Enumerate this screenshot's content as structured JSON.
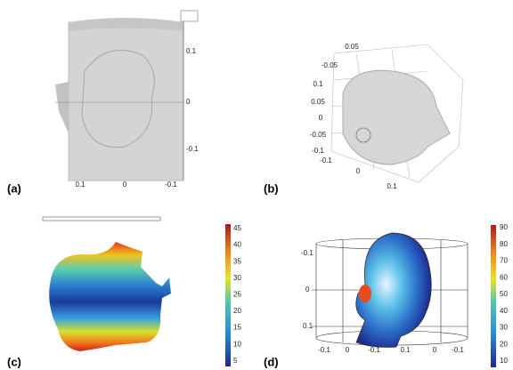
{
  "panels": [
    {
      "label": "(a)",
      "axis_right": [
        "0.1",
        "0",
        "-0.1"
      ],
      "axis_bottom": [
        "0.1",
        "0",
        "-0.1"
      ]
    },
    {
      "label": "(b)",
      "axis_labels": [
        "0.05",
        "-0.05",
        "0.1",
        "0.05",
        "0",
        "-0.05",
        "-0.1",
        "-0.1",
        "0",
        "0.1"
      ]
    },
    {
      "label": "(c)",
      "colorbar": [
        "45",
        "40",
        "35",
        "30",
        "25",
        "20",
        "15",
        "10",
        "5"
      ]
    },
    {
      "label": "(d)",
      "axis_left": [
        "-0.1",
        "0",
        "0.1"
      ],
      "axis_bottom": [
        "-0.1",
        "0",
        "-0.1",
        "0.1",
        "0",
        "-0.1"
      ],
      "colorbar": [
        "90",
        "80",
        "70",
        "60",
        "50",
        "40",
        "30",
        "20",
        "10"
      ]
    }
  ]
}
